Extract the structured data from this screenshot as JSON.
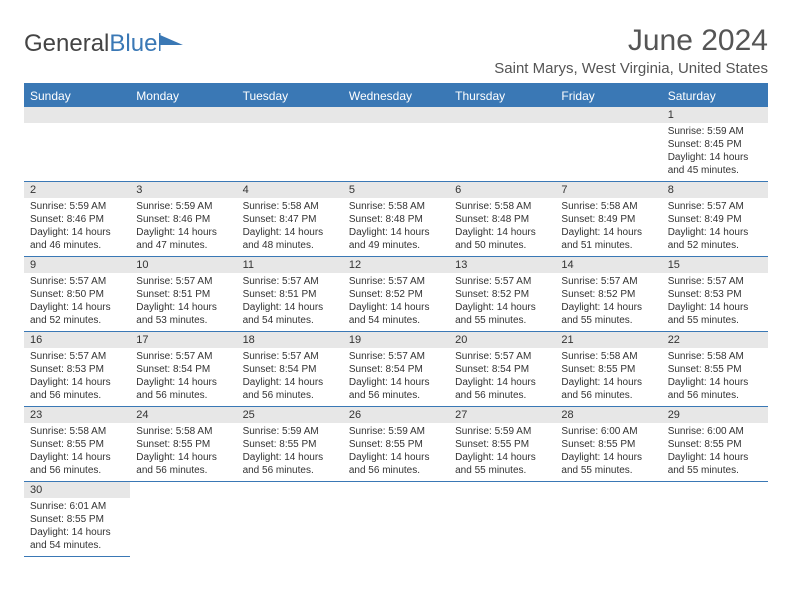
{
  "logo": {
    "text1": "General",
    "text2": "Blue"
  },
  "title": "June 2024",
  "location": "Saint Marys, West Virginia, United States",
  "colors": {
    "brand": "#3a78b5",
    "header_bg": "#3a78b5",
    "daybar": "#e7e7e7",
    "text": "#333333"
  },
  "dayNames": [
    "Sunday",
    "Monday",
    "Tuesday",
    "Wednesday",
    "Thursday",
    "Friday",
    "Saturday"
  ],
  "firstDayIndex": 6,
  "daysInMonth": 30,
  "fields": {
    "sunrise_label": "Sunrise:",
    "sunset_label": "Sunset:",
    "daylight_label": "Daylight:"
  },
  "days": {
    "1": {
      "sunrise": "5:59 AM",
      "sunset": "8:45 PM",
      "daylight": "14 hours and 45 minutes."
    },
    "2": {
      "sunrise": "5:59 AM",
      "sunset": "8:46 PM",
      "daylight": "14 hours and 46 minutes."
    },
    "3": {
      "sunrise": "5:59 AM",
      "sunset": "8:46 PM",
      "daylight": "14 hours and 47 minutes."
    },
    "4": {
      "sunrise": "5:58 AM",
      "sunset": "8:47 PM",
      "daylight": "14 hours and 48 minutes."
    },
    "5": {
      "sunrise": "5:58 AM",
      "sunset": "8:48 PM",
      "daylight": "14 hours and 49 minutes."
    },
    "6": {
      "sunrise": "5:58 AM",
      "sunset": "8:48 PM",
      "daylight": "14 hours and 50 minutes."
    },
    "7": {
      "sunrise": "5:58 AM",
      "sunset": "8:49 PM",
      "daylight": "14 hours and 51 minutes."
    },
    "8": {
      "sunrise": "5:57 AM",
      "sunset": "8:49 PM",
      "daylight": "14 hours and 52 minutes."
    },
    "9": {
      "sunrise": "5:57 AM",
      "sunset": "8:50 PM",
      "daylight": "14 hours and 52 minutes."
    },
    "10": {
      "sunrise": "5:57 AM",
      "sunset": "8:51 PM",
      "daylight": "14 hours and 53 minutes."
    },
    "11": {
      "sunrise": "5:57 AM",
      "sunset": "8:51 PM",
      "daylight": "14 hours and 54 minutes."
    },
    "12": {
      "sunrise": "5:57 AM",
      "sunset": "8:52 PM",
      "daylight": "14 hours and 54 minutes."
    },
    "13": {
      "sunrise": "5:57 AM",
      "sunset": "8:52 PM",
      "daylight": "14 hours and 55 minutes."
    },
    "14": {
      "sunrise": "5:57 AM",
      "sunset": "8:52 PM",
      "daylight": "14 hours and 55 minutes."
    },
    "15": {
      "sunrise": "5:57 AM",
      "sunset": "8:53 PM",
      "daylight": "14 hours and 55 minutes."
    },
    "16": {
      "sunrise": "5:57 AM",
      "sunset": "8:53 PM",
      "daylight": "14 hours and 56 minutes."
    },
    "17": {
      "sunrise": "5:57 AM",
      "sunset": "8:54 PM",
      "daylight": "14 hours and 56 minutes."
    },
    "18": {
      "sunrise": "5:57 AM",
      "sunset": "8:54 PM",
      "daylight": "14 hours and 56 minutes."
    },
    "19": {
      "sunrise": "5:57 AM",
      "sunset": "8:54 PM",
      "daylight": "14 hours and 56 minutes."
    },
    "20": {
      "sunrise": "5:57 AM",
      "sunset": "8:54 PM",
      "daylight": "14 hours and 56 minutes."
    },
    "21": {
      "sunrise": "5:58 AM",
      "sunset": "8:55 PM",
      "daylight": "14 hours and 56 minutes."
    },
    "22": {
      "sunrise": "5:58 AM",
      "sunset": "8:55 PM",
      "daylight": "14 hours and 56 minutes."
    },
    "23": {
      "sunrise": "5:58 AM",
      "sunset": "8:55 PM",
      "daylight": "14 hours and 56 minutes."
    },
    "24": {
      "sunrise": "5:58 AM",
      "sunset": "8:55 PM",
      "daylight": "14 hours and 56 minutes."
    },
    "25": {
      "sunrise": "5:59 AM",
      "sunset": "8:55 PM",
      "daylight": "14 hours and 56 minutes."
    },
    "26": {
      "sunrise": "5:59 AM",
      "sunset": "8:55 PM",
      "daylight": "14 hours and 56 minutes."
    },
    "27": {
      "sunrise": "5:59 AM",
      "sunset": "8:55 PM",
      "daylight": "14 hours and 55 minutes."
    },
    "28": {
      "sunrise": "6:00 AM",
      "sunset": "8:55 PM",
      "daylight": "14 hours and 55 minutes."
    },
    "29": {
      "sunrise": "6:00 AM",
      "sunset": "8:55 PM",
      "daylight": "14 hours and 55 minutes."
    },
    "30": {
      "sunrise": "6:01 AM",
      "sunset": "8:55 PM",
      "daylight": "14 hours and 54 minutes."
    }
  }
}
